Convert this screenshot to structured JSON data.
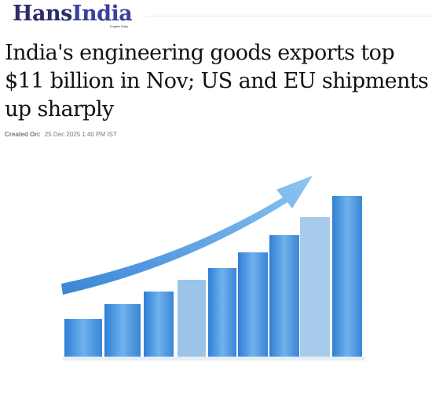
{
  "header": {
    "logo_part1": "Hans",
    "logo_part2": "India",
    "tagline": "English Daily"
  },
  "article": {
    "title": "India's engineering goods exports top $11 billion in Nov; US and EU shipments up sharply",
    "meta_label": "Created On:",
    "date": "25 Dec 2025 1:40 PM IST"
  }
}
